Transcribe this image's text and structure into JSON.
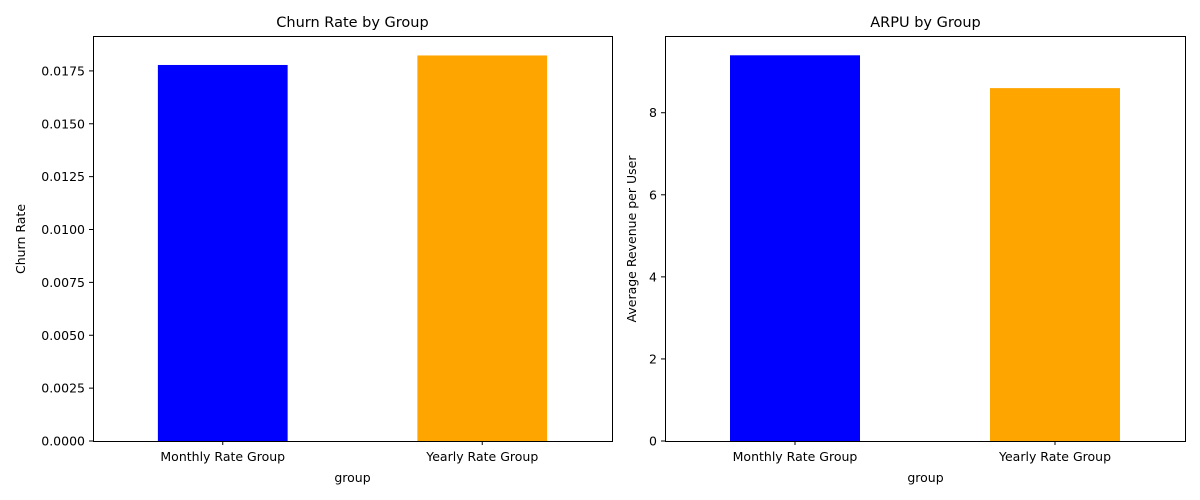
{
  "chart_data": [
    {
      "type": "bar",
      "title": "Churn Rate by Group",
      "xlabel": "group",
      "ylabel": "Churn Rate",
      "categories": [
        "Monthly Rate Group",
        "Yearly Rate Group"
      ],
      "values": [
        0.01778,
        0.01823
      ],
      "colors": [
        "#0000ff",
        "#ffa500"
      ],
      "ylim": [
        0,
        0.01915
      ],
      "yticks": [
        0.0,
        0.0025,
        0.005,
        0.0075,
        0.01,
        0.0125,
        0.015,
        0.0175
      ],
      "ytick_labels": [
        "0.0000",
        "0.0025",
        "0.0050",
        "0.0075",
        "0.0100",
        "0.0125",
        "0.0150",
        "0.0175"
      ],
      "grid": false,
      "legend": "none"
    },
    {
      "type": "bar",
      "title": "ARPU by Group",
      "xlabel": "group",
      "ylabel": "Average Revenue per User",
      "categories": [
        "Monthly Rate Group",
        "Yearly Rate Group"
      ],
      "values": [
        9.4,
        8.6
      ],
      "colors": [
        "#0000ff",
        "#ffa500"
      ],
      "ylim": [
        0,
        9.87
      ],
      "yticks": [
        0,
        2,
        4,
        6,
        8
      ],
      "ytick_labels": [
        "0",
        "2",
        "4",
        "6",
        "8"
      ],
      "grid": false,
      "legend": "none"
    }
  ]
}
